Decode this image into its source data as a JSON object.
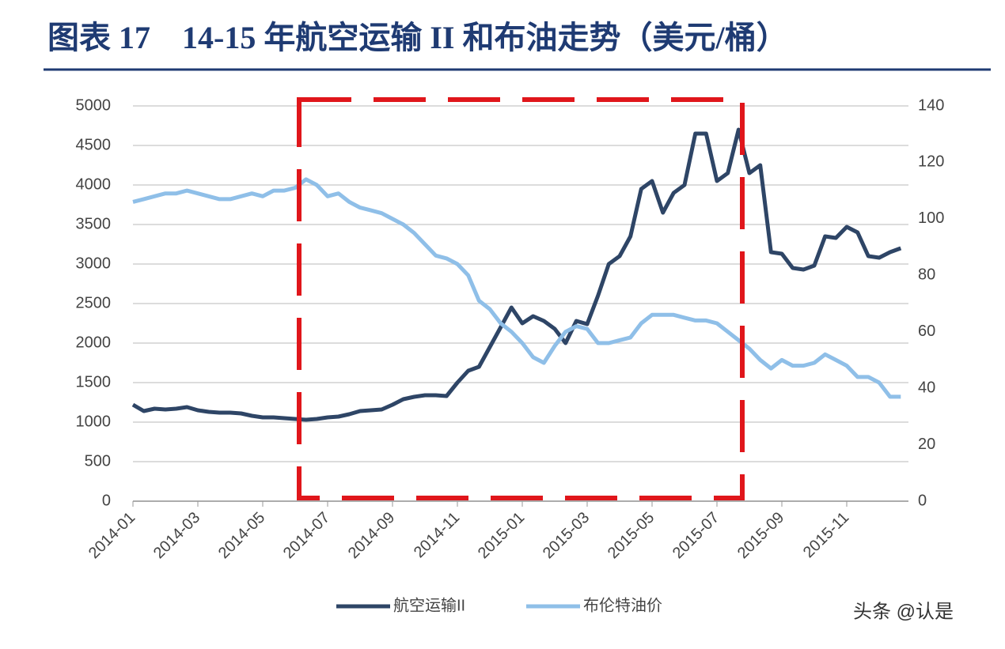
{
  "chart_data": {
    "type": "line",
    "title": "图表 17　14-15 年航空运输 II 和布油走势（美元/桶）",
    "watermark": "头条 @认是",
    "categories": [
      "2014-01",
      null,
      null,
      null,
      null,
      null,
      "2014-03",
      null,
      null,
      null,
      null,
      null,
      "2014-05",
      null,
      null,
      null,
      null,
      null,
      "2014-07",
      null,
      null,
      null,
      null,
      null,
      "2014-09",
      null,
      null,
      null,
      null,
      null,
      "2014-11",
      null,
      null,
      null,
      null,
      null,
      "2015-01",
      null,
      null,
      null,
      null,
      null,
      "2015-03",
      null,
      null,
      null,
      null,
      null,
      "2015-05",
      null,
      null,
      null,
      null,
      null,
      "2015-07",
      null,
      null,
      null,
      null,
      null,
      "2015-09",
      null,
      null,
      null,
      null,
      null,
      "2015-11",
      null,
      null,
      null,
      null,
      null
    ],
    "series": [
      {
        "name": "航空运输II",
        "color": "#2e4566",
        "values": [
          1220,
          1140,
          1170,
          1160,
          1170,
          1190,
          1150,
          1130,
          1120,
          1120,
          1110,
          1080,
          1060,
          1060,
          1050,
          1040,
          1030,
          1040,
          1060,
          1070,
          1100,
          1140,
          1150,
          1160,
          1220,
          1290,
          1320,
          1340,
          1340,
          1330,
          1500,
          1650,
          1700,
          1950,
          2200,
          2450,
          2250,
          2340,
          2280,
          2180,
          2000,
          2280,
          2240,
          2600,
          3000,
          3100,
          3350,
          3950,
          4050,
          3650,
          3900,
          4000,
          4650,
          4650,
          4050,
          4150,
          4700,
          4150,
          4250,
          3150,
          3130,
          2950,
          2930,
          2980,
          3350,
          3330,
          3470,
          3400,
          3100,
          3080,
          3150,
          3200
        ]
      },
      {
        "name": "布伦特油价",
        "color": "#8fbfe8",
        "axis": "y2",
        "values": [
          106,
          107,
          108,
          109,
          109,
          110,
          109,
          108,
          107,
          107,
          108,
          109,
          108,
          110,
          110,
          111,
          114,
          112,
          108,
          109,
          106,
          104,
          103,
          102,
          100,
          98,
          95,
          91,
          87,
          86,
          84,
          80,
          71,
          68,
          63,
          60,
          56,
          51,
          49,
          55,
          60,
          62,
          61,
          56,
          56,
          57,
          58,
          63,
          66,
          66,
          66,
          65,
          64,
          64,
          63,
          60,
          57,
          54,
          50,
          47,
          50,
          48,
          48,
          49,
          52,
          50,
          48,
          44,
          44,
          42,
          37,
          37
        ]
      }
    ],
    "ylim": [
      0,
      5000
    ],
    "yticks": [
      0,
      500,
      1000,
      1500,
      2000,
      2500,
      3000,
      3500,
      4000,
      4500,
      5000
    ],
    "y2lim": [
      0,
      140
    ],
    "y2ticks": [
      0,
      20,
      40,
      60,
      80,
      100,
      120,
      140
    ],
    "grid": true
  }
}
